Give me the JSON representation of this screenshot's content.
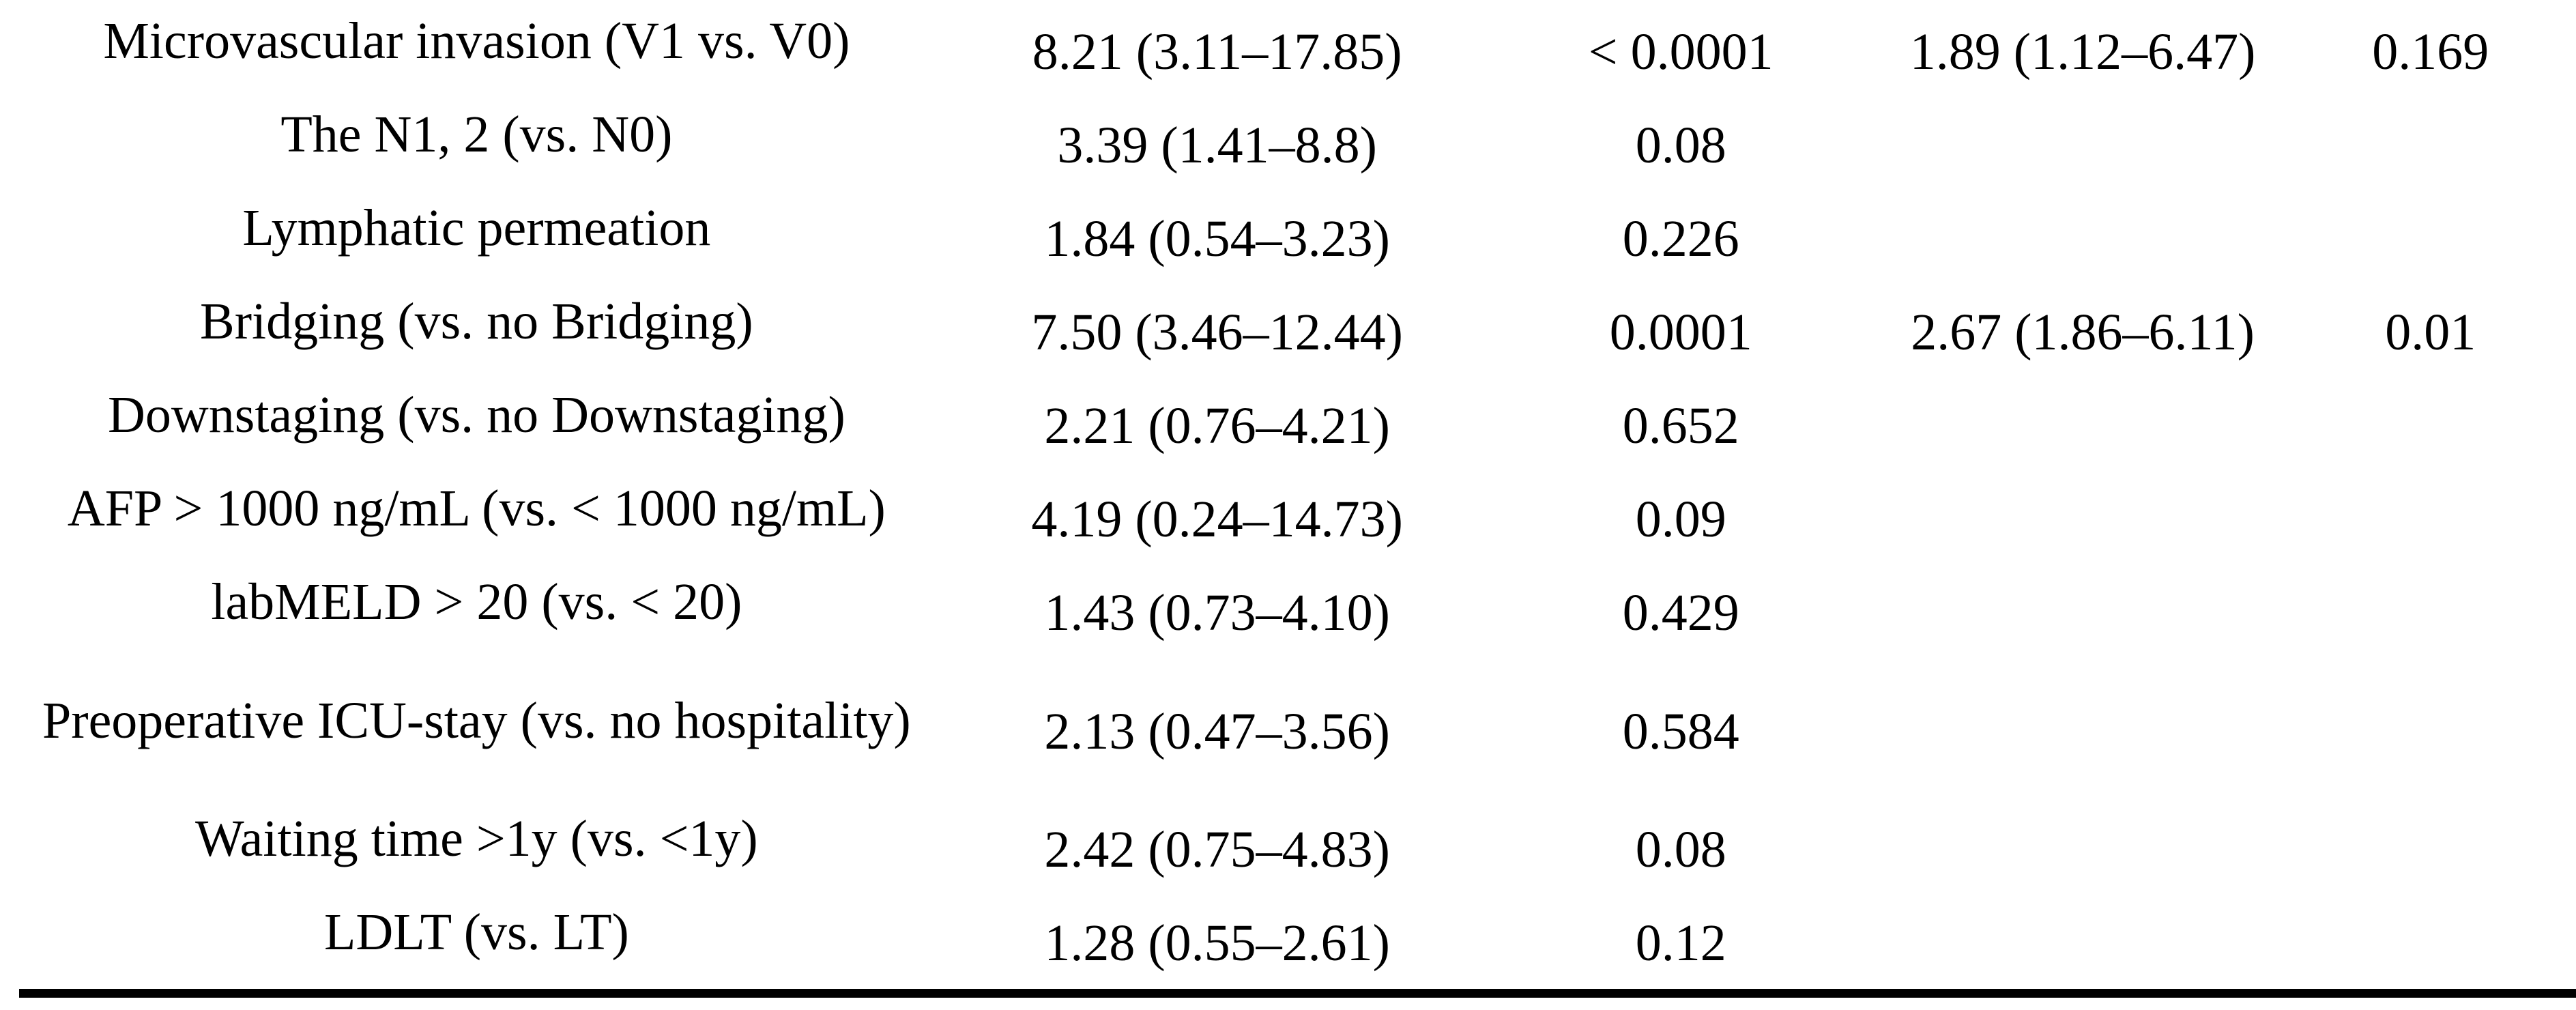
{
  "colors": {
    "text": "#000000",
    "background": "#ffffff",
    "rule": "#000000"
  },
  "table": {
    "rows": [
      {
        "variable": "Microvascular invasion (V1 vs. V0)",
        "uni_hr_ci": "8.21 (3.11–17.85)",
        "uni_p": "< 0.0001",
        "multi_hr_ci": "1.89 (1.12–6.47)",
        "multi_p": "0.169"
      },
      {
        "variable": "The N1, 2 (vs. N0)",
        "uni_hr_ci": "3.39 (1.41–8.8)",
        "uni_p": "0.08",
        "multi_hr_ci": "",
        "multi_p": ""
      },
      {
        "variable": "Lymphatic permeation",
        "uni_hr_ci": "1.84 (0.54–3.23)",
        "uni_p": "0.226",
        "multi_hr_ci": "",
        "multi_p": ""
      },
      {
        "variable": "Bridging (vs. no Bridging)",
        "uni_hr_ci": "7.50 (3.46–12.44)",
        "uni_p": "0.0001",
        "multi_hr_ci": "2.67 (1.86–6.11)",
        "multi_p": "0.01"
      },
      {
        "variable": "Downstaging (vs. no Downstaging)",
        "uni_hr_ci": "2.21 (0.76–4.21)",
        "uni_p": "0.652",
        "multi_hr_ci": "",
        "multi_p": ""
      },
      {
        "variable": "AFP > 1000 ng/mL (vs. < 1000 ng/mL)",
        "uni_hr_ci": "4.19 (0.24–14.73)",
        "uni_p": "0.09",
        "multi_hr_ci": "",
        "multi_p": ""
      },
      {
        "variable": "labMELD > 20 (vs. < 20)",
        "uni_hr_ci": "1.43 (0.73–4.10)",
        "uni_p": "0.429",
        "multi_hr_ci": "",
        "multi_p": ""
      },
      {
        "variable": "Preoperative ICU-stay (vs. no hospitality)",
        "uni_hr_ci": "2.13 (0.47–3.56)",
        "uni_p": "0.584",
        "multi_hr_ci": "",
        "multi_p": ""
      },
      {
        "variable": "Waiting time >1y (vs. <1y)",
        "uni_hr_ci": "2.42 (0.75–4.83)",
        "uni_p": "0.08",
        "multi_hr_ci": "",
        "multi_p": ""
      },
      {
        "variable": "LDLT (vs. LT)",
        "uni_hr_ci": "1.28 (0.55–2.61)",
        "uni_p": "0.12",
        "multi_hr_ci": "",
        "multi_p": ""
      }
    ]
  }
}
